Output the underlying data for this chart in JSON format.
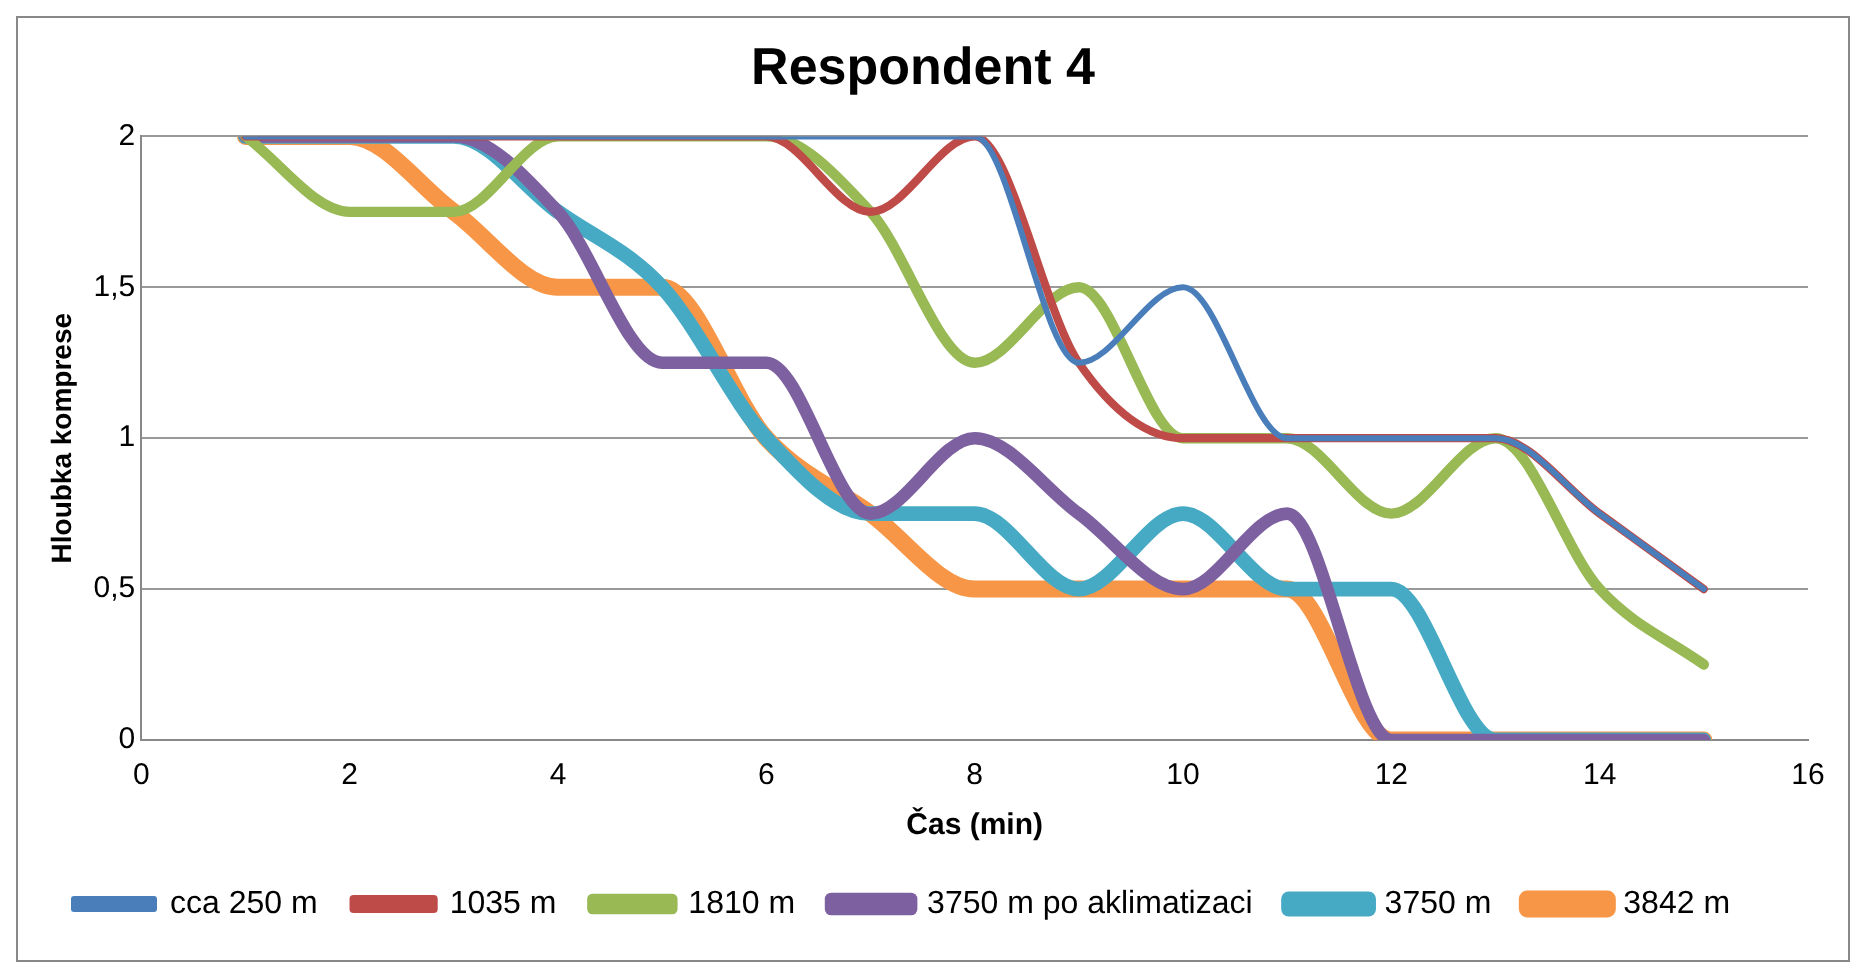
{
  "chart_data": {
    "type": "line",
    "title": "Respondent 4",
    "xlabel": "Čas (min)",
    "ylabel": "Hloubka komprese",
    "x": [
      1,
      2,
      3,
      4,
      5,
      6,
      7,
      8,
      9,
      10,
      11,
      12,
      13,
      14,
      15
    ],
    "xlim": [
      0,
      16
    ],
    "xticks": [
      0,
      2,
      4,
      6,
      8,
      10,
      12,
      14,
      16
    ],
    "ylim": [
      0,
      2
    ],
    "yticks": [
      0,
      {
        "value": 0.5,
        "label": "0,5"
      },
      1,
      {
        "value": 1.5,
        "label": "1,5"
      },
      2
    ],
    "grid": "y",
    "legend": "bottom",
    "marker": "none",
    "line_style": "solid",
    "series": [
      {
        "name": "cca 250 m",
        "color": "#4a7ebb",
        "values": [
          2,
          2,
          2,
          2,
          2,
          2,
          2,
          2,
          1.25,
          1.5,
          1,
          1,
          1,
          0.75,
          0.5
        ]
      },
      {
        "name": "1035 m",
        "color": "#be4b48",
        "values": [
          2,
          2,
          2,
          2,
          2,
          2,
          1.75,
          2,
          1.25,
          1,
          1,
          1,
          1,
          0.75,
          0.5
        ]
      },
      {
        "name": "1810 m",
        "color": "#98b954",
        "values": [
          2,
          1.75,
          1.75,
          2,
          2,
          2,
          1.75,
          1.25,
          1.5,
          1,
          1,
          0.75,
          1,
          0.5,
          0.25
        ]
      },
      {
        "name": "3750 m po aklimatizaci",
        "color": "#7d60a0",
        "values": [
          2,
          2,
          2,
          1.75,
          1.25,
          1.25,
          0.75,
          1,
          0.75,
          0.5,
          0.75,
          0,
          0,
          0,
          0
        ]
      },
      {
        "name": "3750 m",
        "color": "#46aac5",
        "values": [
          2,
          2,
          2,
          1.75,
          1.5,
          1,
          0.75,
          0.75,
          0.5,
          0.75,
          0.5,
          0.5,
          0,
          0,
          0
        ]
      },
      {
        "name": "3842 m",
        "color": "#f79646",
        "values": [
          2,
          2,
          1.75,
          1.5,
          1.5,
          1,
          0.75,
          0.5,
          0.5,
          0.5,
          0.5,
          0,
          0,
          0,
          0
        ]
      }
    ]
  }
}
